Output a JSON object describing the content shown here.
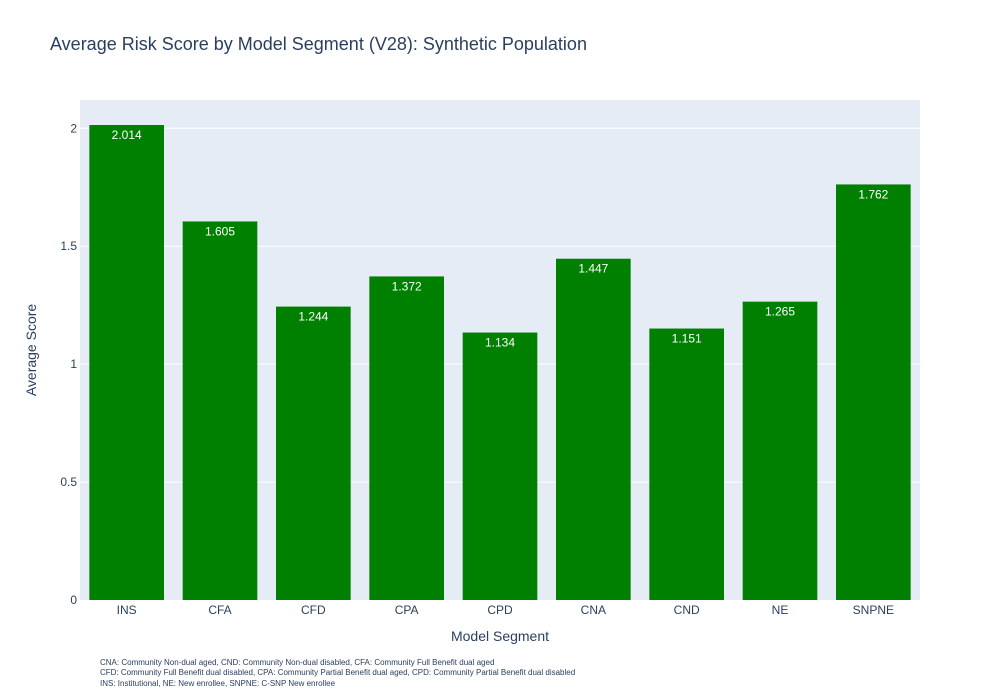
{
  "chart_data": {
    "type": "bar",
    "title": "Average Risk Score by Model Segment (V28):  Synthetic Population",
    "xlabel": "Model Segment",
    "ylabel": "Average Score",
    "categories": [
      "INS",
      "CFA",
      "CFD",
      "CPA",
      "CPD",
      "CNA",
      "CND",
      "NE",
      "SNPNE"
    ],
    "values": [
      2.014,
      1.605,
      1.244,
      1.372,
      1.134,
      1.447,
      1.151,
      1.265,
      1.762
    ],
    "data_labels": [
      "2.014",
      "1.605",
      "1.244",
      "1.372",
      "1.134",
      "1.447",
      "1.151",
      "1.265",
      "1.762"
    ],
    "ylim": [
      0,
      2.12
    ],
    "yticks": [
      0,
      0.5,
      1,
      1.5,
      2
    ],
    "ytick_labels": [
      "0",
      "0.5",
      "1",
      "1.5",
      "2"
    ],
    "grid": true,
    "bar_color": "#008000",
    "plot_bg": "#E5ECF6",
    "grid_color": "#ffffff",
    "text_color": "#2a3f5f"
  },
  "footnotes": [
    "CNA: Community Non-dual aged, CND: Community Non-dual disabled, CFA: Community Full Benefit dual aged",
    "CFD: Community Full Benefit dual disabled, CPA: Community Partial Benefit dual aged, CPD: Community Partial Benefit dual disabled",
    "INS: Institutional, NE: New enrollee, SNPNE: C-SNP New enrollee"
  ]
}
